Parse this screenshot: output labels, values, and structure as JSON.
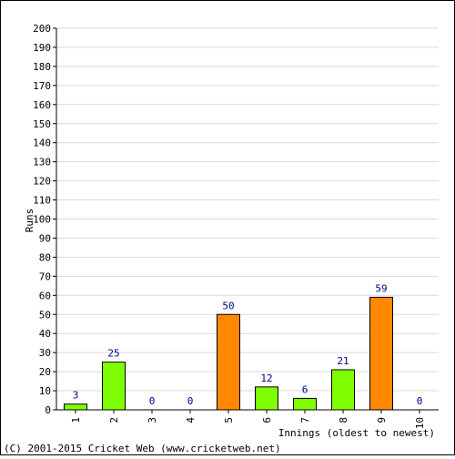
{
  "chart_data": {
    "type": "bar",
    "categories": [
      "1",
      "2",
      "3",
      "4",
      "5",
      "6",
      "7",
      "8",
      "9",
      "10"
    ],
    "values": [
      3,
      25,
      0,
      0,
      50,
      12,
      6,
      21,
      59,
      0
    ],
    "bar_colors": [
      "#80ff00",
      "#80ff00",
      "#80ff00",
      "#80ff00",
      "#ff8800",
      "#80ff00",
      "#80ff00",
      "#80ff00",
      "#ff8800",
      "#80ff00"
    ],
    "ylabel": "Runs",
    "xlabel": "Innings (oldest to newest)",
    "ylim": [
      0,
      200
    ],
    "ytick_step": 10,
    "grid": true
  },
  "footer": {
    "copyright": "(C) 2001-2015 Cricket Web (www.cricketweb.net)"
  },
  "colors": {
    "label_text": "#000080",
    "grid": "#d9d9d9",
    "axis": "#000000"
  }
}
